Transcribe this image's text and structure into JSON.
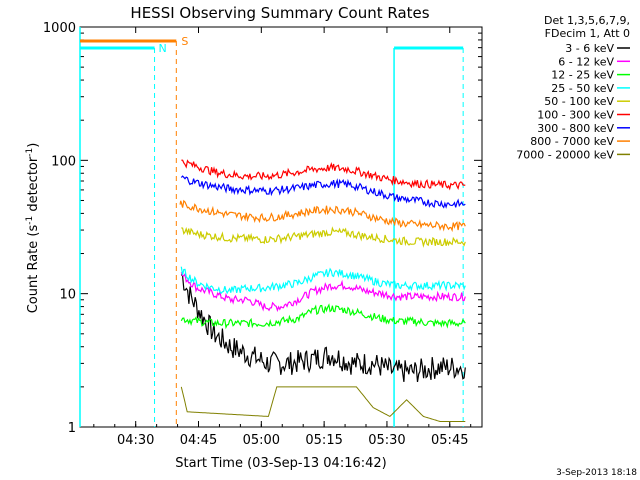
{
  "chart_data": {
    "type": "line",
    "title": "HESSI Observing Summary Count Rates",
    "xlabel": "Start Time (03-Sep-13 04:16:42)",
    "ylabel_main": "Count Rate (s",
    "ylabel_sup1": "-1",
    "ylabel_mid": " detector",
    "ylabel_sup2": "-1",
    "ylabel_end": ")",
    "yscale": "log",
    "ylim": [
      1,
      1000
    ],
    "xlim_minutes": [
      0,
      96
    ],
    "x_ticks": [
      {
        "m": 13.3,
        "label": "04:30"
      },
      {
        "m": 28.3,
        "label": "04:45"
      },
      {
        "m": 43.3,
        "label": "05:00"
      },
      {
        "m": 58.3,
        "label": "05:15"
      },
      {
        "m": 73.3,
        "label": "05:30"
      },
      {
        "m": 88.3,
        "label": "05:45"
      }
    ],
    "y_ticks": [
      {
        "v": 1,
        "label": "1"
      },
      {
        "v": 10,
        "label": "10"
      },
      {
        "v": 100,
        "label": "100"
      },
      {
        "v": 1000,
        "label": "1000"
      }
    ],
    "legend_header": [
      "Det 1,3,5,6,7,9,",
      "FDecim 1, Att 0"
    ],
    "series": [
      {
        "name": "3 - 6 keV",
        "color": "#000000",
        "points": [
          [
            24.2,
            14
          ],
          [
            26,
            10
          ],
          [
            29,
            7
          ],
          [
            32,
            5
          ],
          [
            36,
            4
          ],
          [
            40,
            3.5
          ],
          [
            45,
            3
          ],
          [
            50,
            3
          ],
          [
            55,
            3.2
          ],
          [
            60,
            3.5
          ],
          [
            65,
            3
          ],
          [
            70,
            3
          ],
          [
            75,
            2.6
          ],
          [
            80,
            2.6
          ],
          [
            85,
            2.8
          ],
          [
            90,
            2.8
          ],
          [
            92,
            2.8
          ]
        ]
      },
      {
        "name": "6 - 12 keV",
        "color": "#ff00ff",
        "points": [
          [
            24.2,
            14
          ],
          [
            28,
            11
          ],
          [
            32,
            10
          ],
          [
            36,
            9
          ],
          [
            40,
            9
          ],
          [
            44,
            8
          ],
          [
            48,
            8
          ],
          [
            52,
            9
          ],
          [
            56,
            10.5
          ],
          [
            60,
            11.5
          ],
          [
            64,
            11.5
          ],
          [
            68,
            10.5
          ],
          [
            72,
            10
          ],
          [
            76,
            9.5
          ],
          [
            80,
            9.5
          ],
          [
            84,
            9.5
          ],
          [
            88,
            9.5
          ],
          [
            92,
            9.5
          ]
        ]
      },
      {
        "name": "12 - 25 keV",
        "color": "#00ff00",
        "points": [
          [
            24.2,
            6.5
          ],
          [
            28,
            6.2
          ],
          [
            32,
            6
          ],
          [
            36,
            6
          ],
          [
            40,
            6
          ],
          [
            44,
            6
          ],
          [
            48,
            6.2
          ],
          [
            52,
            6.5
          ],
          [
            56,
            7.5
          ],
          [
            60,
            7.8
          ],
          [
            64,
            7.5
          ],
          [
            68,
            7
          ],
          [
            72,
            6.5
          ],
          [
            76,
            6.2
          ],
          [
            80,
            6.2
          ],
          [
            84,
            6
          ],
          [
            88,
            6
          ],
          [
            92,
            6
          ]
        ]
      },
      {
        "name": "25 - 50 keV",
        "color": "#00ffff",
        "points": [
          [
            24.2,
            15
          ],
          [
            28,
            12
          ],
          [
            32,
            11
          ],
          [
            36,
            10.5
          ],
          [
            40,
            11
          ],
          [
            44,
            11
          ],
          [
            48,
            11.5
          ],
          [
            52,
            12
          ],
          [
            56,
            13.5
          ],
          [
            60,
            14.5
          ],
          [
            64,
            14
          ],
          [
            68,
            13
          ],
          [
            72,
            12
          ],
          [
            76,
            11.5
          ],
          [
            80,
            11.5
          ],
          [
            84,
            11.5
          ],
          [
            88,
            11.5
          ],
          [
            92,
            11.5
          ]
        ]
      },
      {
        "name": "50 - 100 keV",
        "color": "#cccc00",
        "points": [
          [
            24.2,
            30
          ],
          [
            28,
            28
          ],
          [
            32,
            27
          ],
          [
            36,
            26
          ],
          [
            40,
            26
          ],
          [
            44,
            25.5
          ],
          [
            48,
            26
          ],
          [
            52,
            27
          ],
          [
            56,
            28
          ],
          [
            60,
            29
          ],
          [
            64,
            28.5
          ],
          [
            68,
            27
          ],
          [
            72,
            26
          ],
          [
            76,
            25
          ],
          [
            80,
            24.5
          ],
          [
            84,
            24.5
          ],
          [
            88,
            24.5
          ],
          [
            92,
            24.5
          ]
        ]
      },
      {
        "name": "100 - 300 keV",
        "color": "#ff0000",
        "points": [
          [
            24.2,
            98
          ],
          [
            28,
            90
          ],
          [
            32,
            82
          ],
          [
            36,
            78
          ],
          [
            40,
            76
          ],
          [
            44,
            76
          ],
          [
            48,
            78
          ],
          [
            52,
            82
          ],
          [
            56,
            86
          ],
          [
            60,
            88
          ],
          [
            64,
            86
          ],
          [
            68,
            80
          ],
          [
            72,
            74
          ],
          [
            76,
            70
          ],
          [
            80,
            67
          ],
          [
            84,
            66
          ],
          [
            88,
            65
          ],
          [
            92,
            65
          ]
        ]
      },
      {
        "name": "300 - 800 keV",
        "color": "#0000ff",
        "points": [
          [
            24.2,
            74
          ],
          [
            28,
            68
          ],
          [
            32,
            64
          ],
          [
            36,
            61
          ],
          [
            40,
            60
          ],
          [
            44,
            59
          ],
          [
            48,
            60
          ],
          [
            52,
            62
          ],
          [
            56,
            65
          ],
          [
            60,
            67
          ],
          [
            64,
            66
          ],
          [
            68,
            61
          ],
          [
            72,
            56
          ],
          [
            76,
            52
          ],
          [
            80,
            50
          ],
          [
            84,
            48
          ],
          [
            88,
            47
          ],
          [
            92,
            47
          ]
        ]
      },
      {
        "name": "800 - 7000 keV",
        "color": "#ff8000",
        "points": [
          [
            23.9,
            48
          ],
          [
            24.2,
            47
          ],
          [
            28,
            44
          ],
          [
            32,
            41
          ],
          [
            36,
            39
          ],
          [
            40,
            38
          ],
          [
            44,
            37
          ],
          [
            48,
            38
          ],
          [
            52,
            40
          ],
          [
            56,
            42
          ],
          [
            60,
            43
          ],
          [
            64,
            42
          ],
          [
            68,
            39
          ],
          [
            72,
            36
          ],
          [
            76,
            34
          ],
          [
            80,
            33
          ],
          [
            84,
            32.5
          ],
          [
            88,
            32
          ],
          [
            92,
            32
          ]
        ]
      },
      {
        "name": "7000 - 20000 keV",
        "color": "#808000",
        "points": [
          [
            24.2,
            2
          ],
          [
            25.6,
            1.3
          ],
          [
            45,
            1.2
          ],
          [
            47,
            2
          ],
          [
            50,
            2
          ],
          [
            54,
            2
          ],
          [
            58,
            2
          ],
          [
            62,
            2
          ],
          [
            66,
            2
          ],
          [
            70,
            1.4
          ],
          [
            74,
            1.2
          ],
          [
            78,
            1.6
          ],
          [
            82,
            1.2
          ],
          [
            86,
            1.1
          ],
          [
            90,
            1.1
          ],
          [
            92,
            1.1
          ]
        ]
      }
    ],
    "annotations": [
      {
        "label": "S",
        "color": "#ff8000"
      },
      {
        "label": "N",
        "color": "#00ffff"
      }
    ]
  },
  "timestamp": "3-Sep-2013 18:18"
}
